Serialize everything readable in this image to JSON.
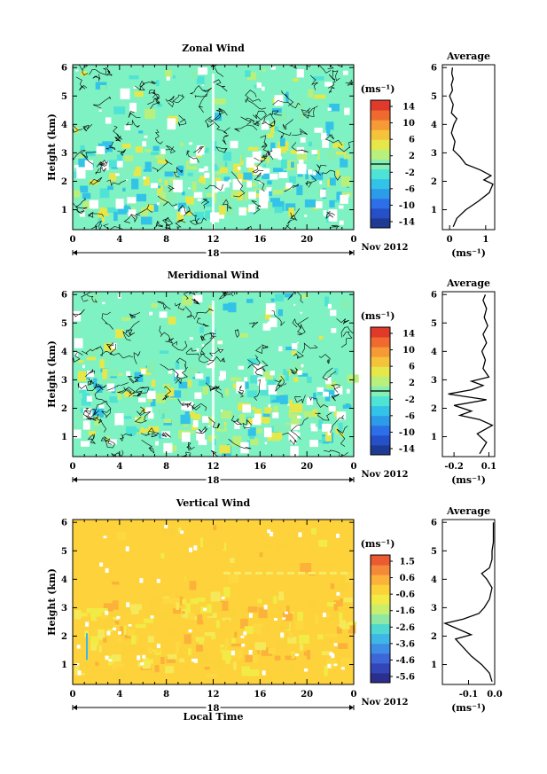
{
  "panels": [
    {
      "title": "Zonal Wind",
      "ylabel": "Height (km)",
      "xticks": [
        "0",
        "4",
        "8",
        "12",
        "16",
        "20",
        "0"
      ],
      "yticks": [
        "1",
        "2",
        "3",
        "4",
        "5",
        "6"
      ],
      "day_label": "18",
      "date_label": "Nov 2012",
      "colorbar": {
        "unit": "(ms⁻¹)",
        "labels": [
          "14",
          "10",
          "6",
          "2",
          "-2",
          "-6",
          "-10",
          "-14"
        ],
        "range": [
          -16,
          16
        ]
      },
      "profile": {
        "title": "Average",
        "xlabel": "(ms⁻¹)",
        "xticks": [
          "0",
          "1"
        ],
        "xlim": [
          -0.2,
          1.25
        ],
        "yticks": [
          "1",
          "2",
          "3",
          "4",
          "5",
          "6"
        ]
      }
    },
    {
      "title": "Meridional Wind",
      "ylabel": "Height (km)",
      "xticks": [
        "0",
        "4",
        "8",
        "12",
        "16",
        "20",
        "0"
      ],
      "yticks": [
        "1",
        "2",
        "3",
        "4",
        "5",
        "6"
      ],
      "day_label": "18",
      "date_label": "Nov 2012",
      "colorbar": {
        "unit": "(ms⁻¹)",
        "labels": [
          "14",
          "10",
          "6",
          "2",
          "-2",
          "-6",
          "-10",
          "-14"
        ],
        "range": [
          -16,
          16
        ]
      },
      "profile": {
        "title": "Average",
        "xlabel": "(ms⁻¹)",
        "xticks": [
          "-0.2",
          "0.1"
        ],
        "xlim": [
          -0.3,
          0.15
        ],
        "yticks": [
          "1",
          "2",
          "3",
          "4",
          "5",
          "6"
        ]
      }
    },
    {
      "title": "Vertical Wind",
      "ylabel": "Height (km)",
      "xlabel": "Local Time",
      "xticks": [
        "0",
        "4",
        "8",
        "12",
        "16",
        "20",
        "0"
      ],
      "yticks": [
        "1",
        "2",
        "3",
        "4",
        "5",
        "6"
      ],
      "day_label": "18",
      "date_label": "Nov 2012",
      "colorbar": {
        "unit": "(ms⁻¹)",
        "labels": [
          "1.5",
          "0.6",
          "-0.6",
          "-1.6",
          "-2.6",
          "-3.6",
          "-4.6",
          "-5.6"
        ],
        "range": [
          -6.1,
          2.0
        ]
      },
      "profile": {
        "title": "Average",
        "xlabel": "(ms⁻¹)",
        "xticks": [
          "-0.1",
          "0.0"
        ],
        "xlim": [
          -0.2,
          0.0
        ],
        "yticks": [
          "1",
          "2",
          "3",
          "4",
          "5",
          "6"
        ]
      }
    }
  ],
  "chart_data": [
    {
      "type": "heatmap",
      "title": "Zonal Wind",
      "ylabel": "Height (km)",
      "xlim": [
        0,
        24
      ],
      "ylim": [
        0.3,
        6.1
      ],
      "colorbar_range": [
        -16,
        16
      ],
      "dominant_value_range": [
        -2,
        2
      ],
      "notes_visible": "mostly near-zero values with black contour lines; small positive (yellow/orange) and negative (blue) patches below 2.5 km"
    },
    {
      "type": "line",
      "title": "Average",
      "xlabel": "(ms⁻¹)",
      "xlim": [
        -0.2,
        1.25
      ],
      "ylim": [
        0.3,
        6.1
      ],
      "series": [
        {
          "x": [
            0.1,
            0.2,
            0.45,
            0.8,
            1.1,
            1.2,
            0.95,
            1.15,
            0.85,
            0.45,
            0.3,
            0.1,
            0.15,
            0.05,
            0.12,
            0.2,
            0.05,
            0.1,
            0.0,
            0.08,
            0.05,
            0.1,
            0.06,
            0.08
          ],
          "y": [
            0.4,
            0.7,
            1.0,
            1.3,
            1.6,
            1.9,
            2.05,
            2.2,
            2.4,
            2.6,
            2.85,
            3.1,
            3.4,
            3.7,
            4.0,
            4.2,
            4.4,
            4.7,
            5.0,
            5.2,
            5.4,
            5.6,
            5.8,
            6.0
          ]
        }
      ]
    },
    {
      "type": "heatmap",
      "title": "Meridional Wind",
      "ylabel": "Height (km)",
      "xlim": [
        0,
        24
      ],
      "ylim": [
        0.3,
        6.1
      ],
      "colorbar_range": [
        -16,
        16
      ],
      "dominant_value_range": [
        -2,
        2
      ]
    },
    {
      "type": "line",
      "title": "Average",
      "xlabel": "(ms⁻¹)",
      "xlim": [
        -0.3,
        0.15
      ],
      "ylim": [
        0.3,
        6.1
      ],
      "series": [
        {
          "x": [
            0.02,
            0.08,
            0.0,
            0.13,
            0.02,
            -0.15,
            -0.05,
            -0.2,
            0.08,
            -0.25,
            -0.05,
            0.05,
            -0.05,
            0.1,
            0.05,
            0.07,
            0.04,
            0.08,
            0.05,
            0.09,
            0.06,
            0.08,
            0.05,
            0.07
          ],
          "y": [
            0.4,
            0.8,
            1.1,
            1.4,
            1.6,
            1.75,
            1.9,
            2.1,
            2.3,
            2.5,
            2.65,
            2.8,
            2.95,
            3.1,
            3.4,
            3.7,
            4.0,
            4.3,
            4.6,
            4.9,
            5.2,
            5.5,
            5.8,
            6.0
          ]
        }
      ]
    },
    {
      "type": "heatmap",
      "title": "Vertical Wind",
      "ylabel": "Height (km)",
      "xlabel": "Local Time",
      "xlim": [
        0,
        24
      ],
      "ylim": [
        0.3,
        6.1
      ],
      "colorbar_range": [
        -6.1,
        2.0
      ],
      "dominant_value_range": [
        -0.6,
        0.6
      ]
    },
    {
      "type": "line",
      "title": "Average",
      "xlabel": "(ms⁻¹)",
      "xlim": [
        -0.2,
        0.0
      ],
      "ylim": [
        0.3,
        6.1
      ],
      "series": [
        {
          "x": [
            -0.01,
            -0.02,
            -0.05,
            -0.09,
            -0.12,
            -0.15,
            -0.09,
            -0.14,
            -0.19,
            -0.12,
            -0.06,
            -0.04,
            -0.02,
            -0.01,
            -0.03,
            -0.05,
            -0.02,
            -0.01,
            -0.01,
            -0.005,
            -0.005,
            -0.005
          ],
          "y": [
            0.4,
            0.7,
            1.0,
            1.3,
            1.6,
            1.9,
            2.05,
            2.25,
            2.45,
            2.6,
            2.8,
            3.0,
            3.3,
            3.7,
            4.0,
            4.2,
            4.4,
            4.7,
            5.0,
            5.3,
            5.7,
            6.0
          ]
        }
      ]
    }
  ]
}
